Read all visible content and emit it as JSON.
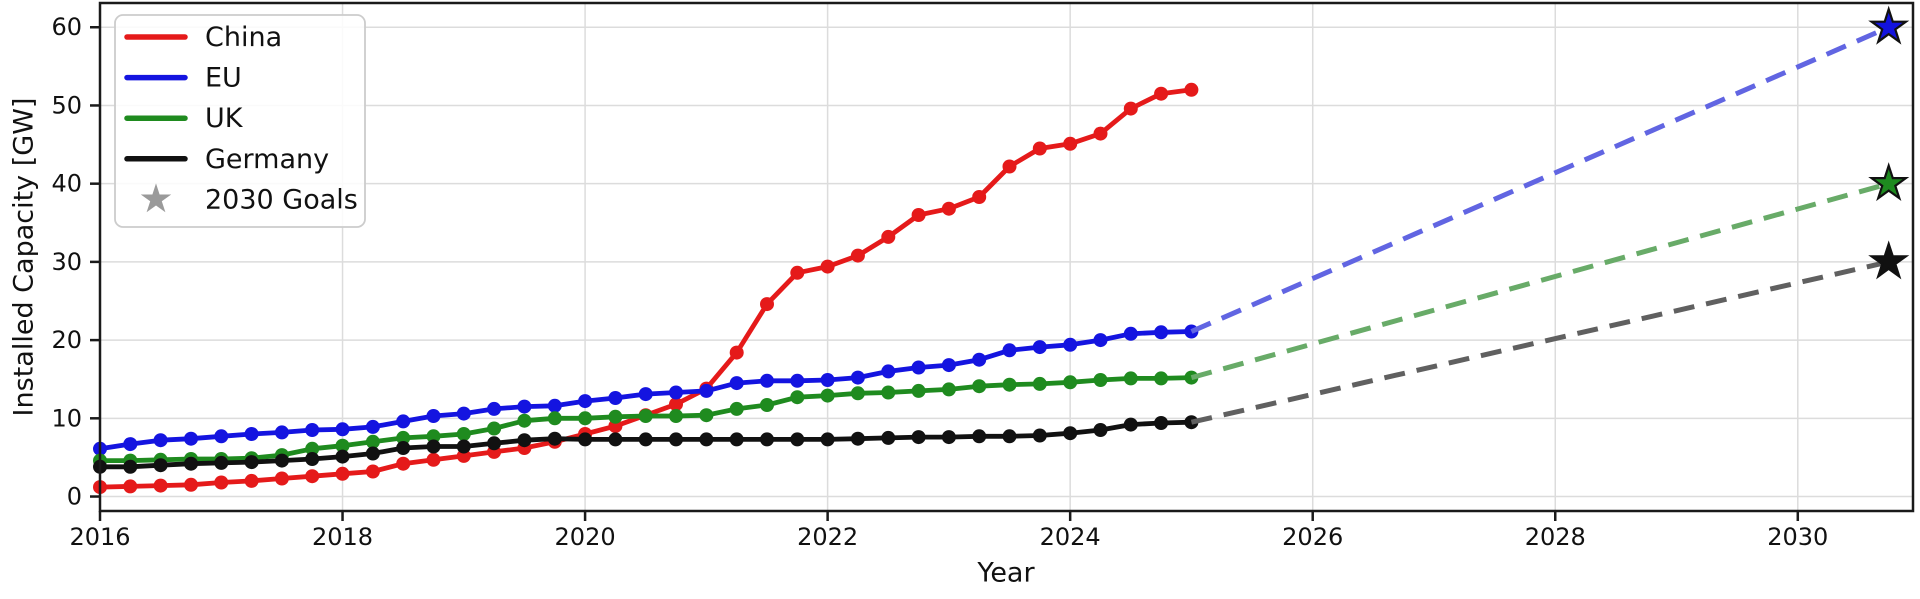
{
  "figure": {
    "background": "#ffffff"
  },
  "chart_data": {
    "type": "line",
    "title": "",
    "xlabel": "Year",
    "ylabel": "Installed Capacity [GW]",
    "xlim": [
      2016,
      2030.95
    ],
    "ylim": [
      -1.85,
      63.1
    ],
    "xticks": [
      2016,
      2018,
      2020,
      2022,
      2024,
      2026,
      2028,
      2030
    ],
    "yticks": [
      0,
      10,
      20,
      30,
      40,
      50,
      60
    ],
    "grid": true,
    "grid_color": "#dcdcdc",
    "spine_color": "#1a1a1a",
    "tick_label_color": "#111111",
    "legend_position": "upper-left",
    "x": [
      2016,
      2016.25,
      2016.5,
      2016.75,
      2017,
      2017.25,
      2017.5,
      2017.75,
      2018,
      2018.25,
      2018.5,
      2018.75,
      2019,
      2019.25,
      2019.5,
      2019.75,
      2020,
      2020.25,
      2020.5,
      2020.75,
      2021,
      2021.25,
      2021.5,
      2021.75,
      2022,
      2022.25,
      2022.5,
      2022.75,
      2023,
      2023.25,
      2023.5,
      2023.75,
      2024,
      2024.25,
      2024.5,
      2024.75,
      2025
    ],
    "series": [
      {
        "name": "China",
        "color": "#e51a1a",
        "values": [
          1.2,
          1.3,
          1.4,
          1.5,
          1.8,
          2.0,
          2.3,
          2.6,
          2.9,
          3.2,
          4.2,
          4.7,
          5.2,
          5.7,
          6.2,
          7.0,
          8.0,
          9.0,
          10.4,
          11.8,
          13.8,
          18.4,
          24.6,
          28.6,
          29.4,
          30.8,
          33.2,
          36.0,
          36.8,
          38.3,
          42.2,
          44.5,
          45.1,
          46.4,
          49.6,
          51.5,
          52.0
        ]
      },
      {
        "name": "EU",
        "color": "#1414e0",
        "values": [
          6.1,
          6.7,
          7.2,
          7.4,
          7.7,
          8.0,
          8.2,
          8.5,
          8.6,
          8.9,
          9.6,
          10.3,
          10.6,
          11.2,
          11.5,
          11.6,
          12.2,
          12.6,
          13.1,
          13.3,
          13.5,
          14.5,
          14.8,
          14.8,
          14.9,
          15.2,
          16.0,
          16.5,
          16.8,
          17.5,
          18.7,
          19.1,
          19.4,
          20.0,
          20.8,
          21.0,
          21.1
        ]
      },
      {
        "name": "UK",
        "color": "#1f8b1f",
        "values": [
          4.6,
          4.6,
          4.7,
          4.8,
          4.8,
          4.9,
          5.3,
          6.1,
          6.5,
          7.0,
          7.5,
          7.7,
          8.0,
          8.7,
          9.7,
          10.0,
          10.0,
          10.2,
          10.3,
          10.3,
          10.4,
          11.2,
          11.7,
          12.7,
          12.9,
          13.2,
          13.3,
          13.5,
          13.7,
          14.1,
          14.3,
          14.4,
          14.6,
          14.9,
          15.1,
          15.1,
          15.2
        ]
      },
      {
        "name": "Germany",
        "color": "#111111",
        "values": [
          3.8,
          3.8,
          4.0,
          4.2,
          4.3,
          4.4,
          4.6,
          4.8,
          5.1,
          5.5,
          6.2,
          6.4,
          6.4,
          6.8,
          7.2,
          7.4,
          7.3,
          7.3,
          7.3,
          7.3,
          7.3,
          7.3,
          7.3,
          7.3,
          7.3,
          7.4,
          7.5,
          7.6,
          7.6,
          7.7,
          7.7,
          7.8,
          8.1,
          8.5,
          9.2,
          9.4,
          9.5
        ]
      }
    ],
    "projections": [
      {
        "series": "EU",
        "color": "#6165e2",
        "from_x": 2025,
        "from_y": 21.1,
        "to_x": 2030.75,
        "to_y": 60,
        "star_color": "#1212dd"
      },
      {
        "series": "UK",
        "color": "#68ab68",
        "from_x": 2025,
        "from_y": 15.2,
        "to_x": 2030.75,
        "to_y": 40,
        "star_color": "#1e8b1f"
      },
      {
        "series": "Germany",
        "color": "#606060",
        "from_x": 2025,
        "from_y": 9.5,
        "to_x": 2030.75,
        "to_y": 30,
        "star_color": "#111111"
      }
    ],
    "goals": [
      {
        "name": "EU 2030 goal",
        "x": 2030.75,
        "value": 60
      },
      {
        "name": "UK 2030 goal",
        "x": 2030.75,
        "value": 40
      },
      {
        "name": "Germany 2030 goal",
        "x": 2030.75,
        "value": 30
      }
    ],
    "legend": {
      "entries": [
        {
          "label": "China",
          "marker": "line",
          "color": "#e51a1a"
        },
        {
          "label": "EU",
          "marker": "line",
          "color": "#1414e0"
        },
        {
          "label": "UK",
          "marker": "line",
          "color": "#1f8b1f"
        },
        {
          "label": "Germany",
          "marker": "line",
          "color": "#111111"
        },
        {
          "label": "2030 Goals",
          "marker": "star",
          "color": "#9a9a9a"
        }
      ]
    }
  }
}
